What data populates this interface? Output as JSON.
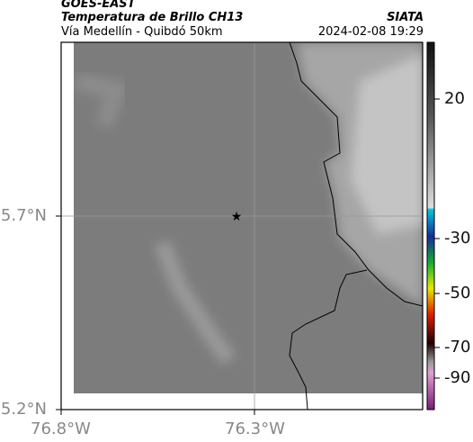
{
  "header": {
    "satellite": "GOES-EAST",
    "product": "Temperatura de Brillo CH13",
    "org": "SIATA",
    "route": "Vía Medellín - Quibdó 50km",
    "datetime": "2024-02-08 19:29"
  },
  "map": {
    "lat_labels": [
      "5.7°N",
      "5.2°N"
    ],
    "lon_labels": [
      "76.8°W",
      "76.3°W"
    ]
  },
  "colorbar": {
    "ticks": [
      20,
      -30,
      -50,
      -70,
      -90
    ]
  }
}
